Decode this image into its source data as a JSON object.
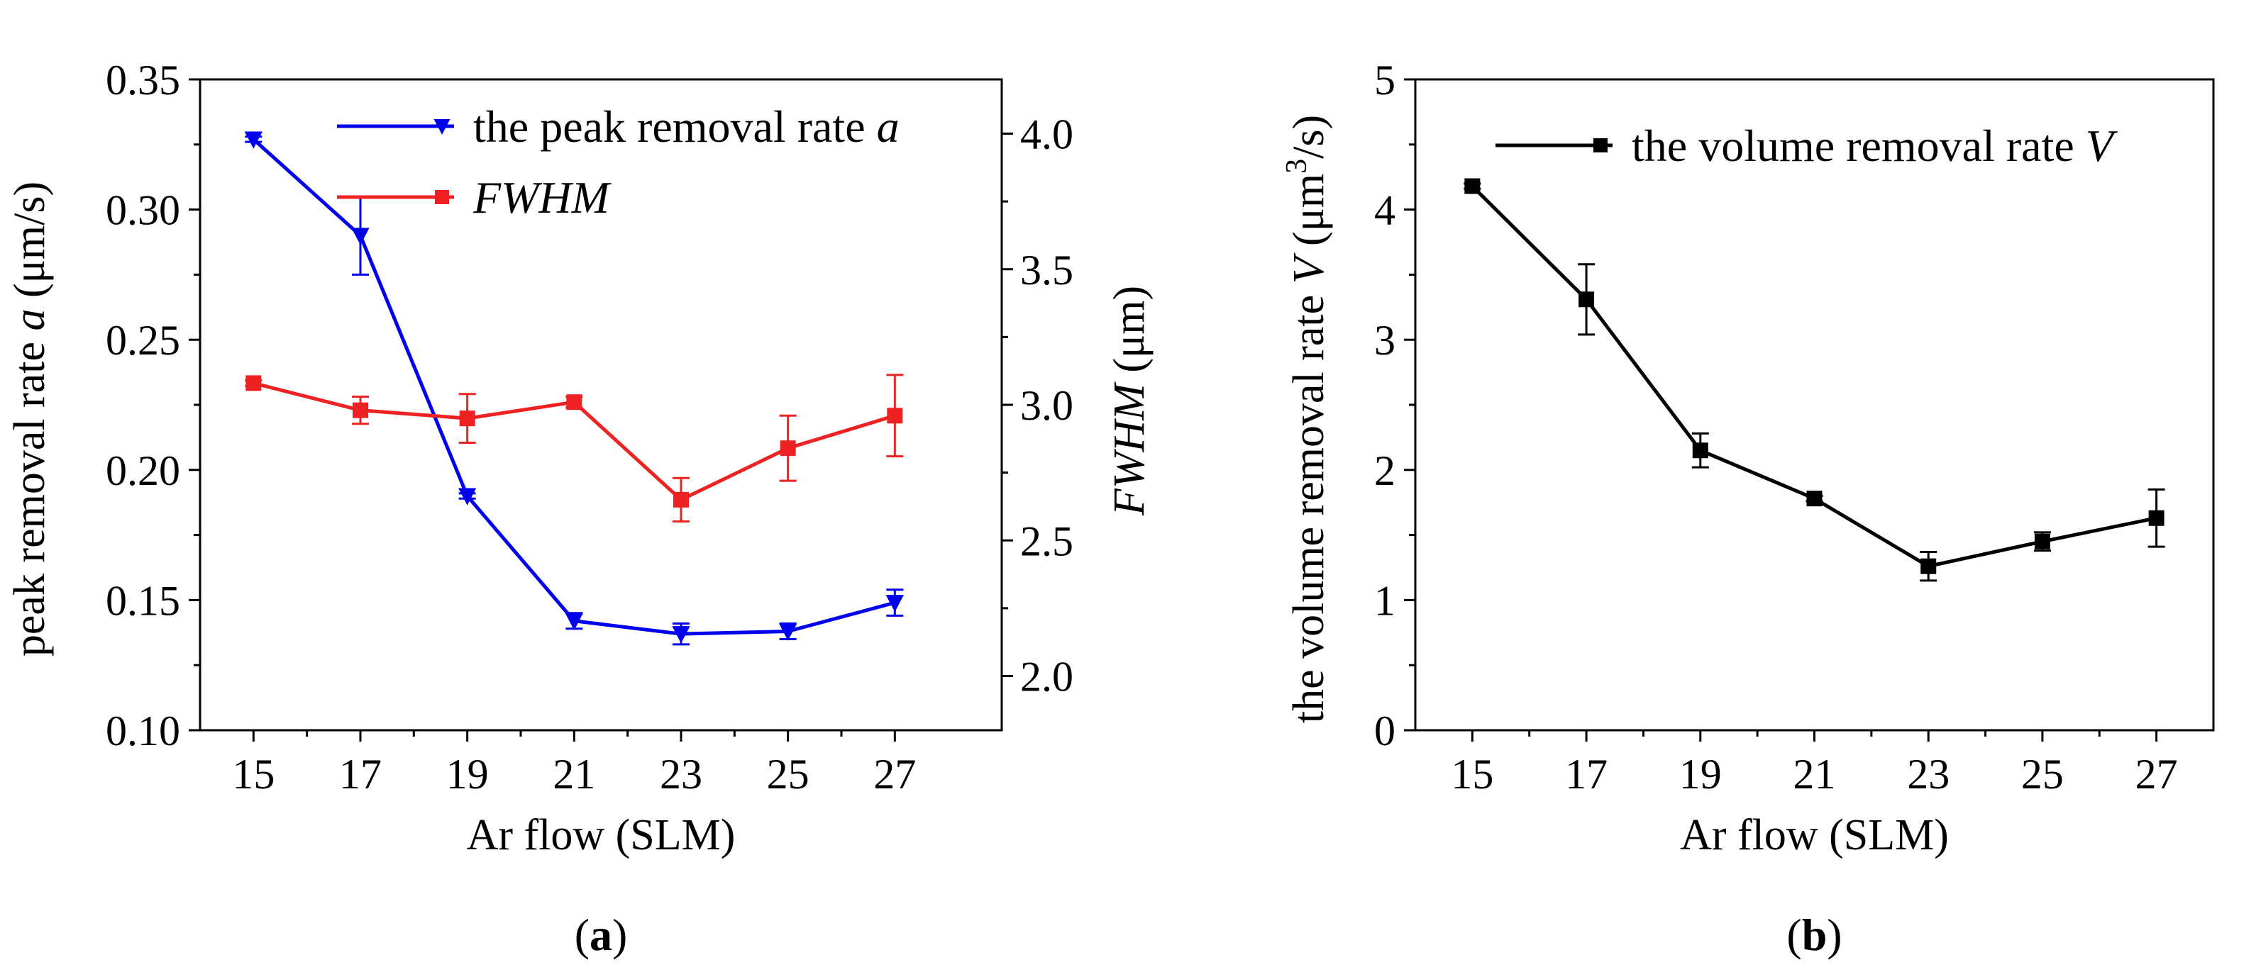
{
  "chart_data": [
    {
      "panel": "a",
      "caption_letter": "a",
      "type": "line",
      "xlabel": "Ar flow (SLM)",
      "ylabel_left": {
        "pre": "peak removal rate ",
        "italic": "a",
        "post": " (μm/s)"
      },
      "ylabel_right": {
        "italic": "FWHM",
        "post": " (μm)"
      },
      "x": [
        15,
        17,
        19,
        21,
        23,
        25,
        27
      ],
      "xticks": [
        "15",
        "17",
        "19",
        "21",
        "23",
        "25",
        "27"
      ],
      "xlim": [
        14,
        29
      ],
      "ylim_left": [
        0.1,
        0.35
      ],
      "yticks_left": [
        "0.10",
        "0.15",
        "0.20",
        "0.25",
        "0.30",
        "0.35"
      ],
      "ylim_right": [
        1.8,
        4.2
      ],
      "yticks_right": [
        "2.0",
        "2.5",
        "3.0",
        "3.5",
        "4.0"
      ],
      "legend_position": "top-right",
      "series": [
        {
          "name": {
            "pre": "the peak removal rate ",
            "italic": "a"
          },
          "axis": "left",
          "color": "#0000ee",
          "marker": "triangle-down",
          "values": [
            0.327,
            0.29,
            0.19,
            0.142,
            0.137,
            0.138,
            0.149
          ],
          "errors": [
            0.001,
            0.015,
            0.001,
            0.003,
            0.004,
            0.003,
            0.005
          ]
        },
        {
          "name": {
            "pre": "",
            "italic": "FWHM"
          },
          "axis": "right",
          "color": "#ee2222",
          "marker": "square",
          "values": [
            3.08,
            2.98,
            2.95,
            3.01,
            2.65,
            2.84,
            2.96
          ],
          "errors": [
            0.01,
            0.05,
            0.09,
            0.02,
            0.08,
            0.12,
            0.15
          ]
        }
      ]
    },
    {
      "panel": "b",
      "caption_letter": "b",
      "type": "line",
      "xlabel": "Ar flow (SLM)",
      "ylabel_left": {
        "pre": "the volume removal rate ",
        "italic": "V",
        "post": " (μm",
        "sup": "3",
        "post2": "/s)"
      },
      "x": [
        15,
        17,
        19,
        21,
        23,
        25,
        27
      ],
      "xticks": [
        "15",
        "17",
        "19",
        "21",
        "23",
        "25",
        "27"
      ],
      "xlim": [
        14,
        28
      ],
      "ylim_left": [
        0,
        5
      ],
      "yticks_left": [
        "0",
        "1",
        "2",
        "3",
        "4",
        "5"
      ],
      "legend_position": "top-right",
      "series": [
        {
          "name": {
            "pre": "the volume removal rate ",
            "italic": "V"
          },
          "axis": "left",
          "color": "#000000",
          "marker": "square",
          "values": [
            4.18,
            3.31,
            2.15,
            1.78,
            1.26,
            1.45,
            1.63
          ],
          "errors": [
            0.02,
            0.27,
            0.13,
            0.02,
            0.11,
            0.07,
            0.22
          ]
        }
      ]
    }
  ]
}
